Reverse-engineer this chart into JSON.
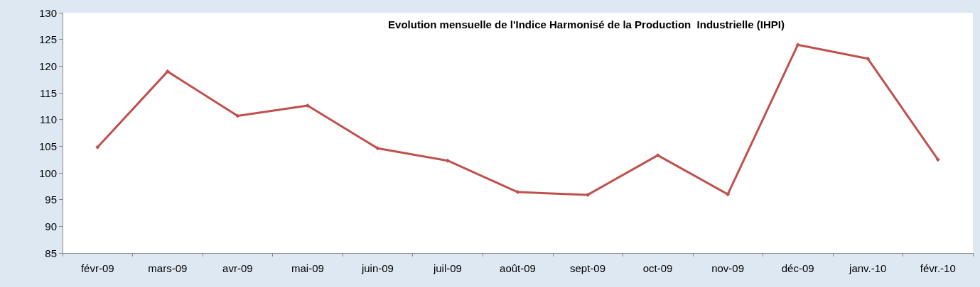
{
  "chart_data": {
    "type": "line",
    "title": "Evolution mensuelle de l'Indice Harmonisé de la Production  Industrielle (IHPI)",
    "categories": [
      "févr-09",
      "mars-09",
      "avr-09",
      "mai-09",
      "juin-09",
      "juil-09",
      "août-09",
      "sept-09",
      "oct-09",
      "nov-09",
      "déc-09",
      "janv.-10",
      "févr.-10"
    ],
    "series": [
      {
        "color": "#c0504d",
        "values": [
          104.8,
          119.0,
          110.7,
          112.6,
          104.6,
          102.3,
          96.4,
          95.9,
          103.3,
          96.0,
          124.0,
          121.4,
          102.5
        ]
      }
    ],
    "ylim": [
      85,
      130
    ],
    "yticks": [
      85,
      90,
      95,
      100,
      105,
      110,
      115,
      120,
      125,
      130
    ],
    "grid": false,
    "marker": "diamond",
    "line_style": "solid"
  }
}
